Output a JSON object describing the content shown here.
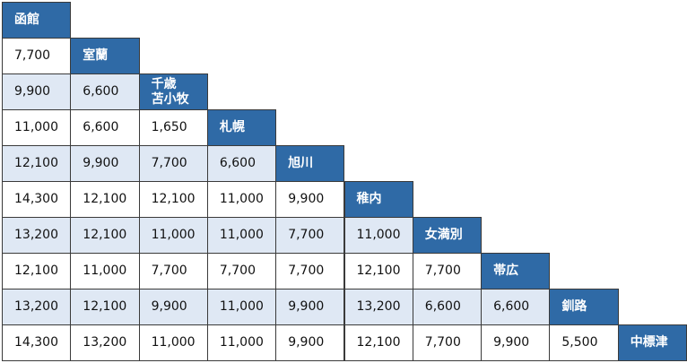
{
  "table": {
    "stations": [
      "函館",
      "室蘭",
      "千歳\n苫小牧",
      "札幌",
      "旭川",
      "稚内",
      "女満別",
      "帯広",
      "釧路",
      "中標津"
    ],
    "rows": [
      [],
      [
        "7,700"
      ],
      [
        "9,900",
        "6,600"
      ],
      [
        "11,000",
        "6,600",
        "1,650"
      ],
      [
        "12,100",
        "9,900",
        "7,700",
        "6,600"
      ],
      [
        "14,300",
        "12,100",
        "12,100",
        "11,000",
        "9,900"
      ],
      [
        "13,200",
        "12,100",
        "11,000",
        "11,000",
        "7,700",
        "11,000"
      ],
      [
        "12,100",
        "11,000",
        "7,700",
        "7,700",
        "7,700",
        "12,100",
        "7,700"
      ],
      [
        "13,200",
        "12,100",
        "9,900",
        "11,000",
        "9,900",
        "13,200",
        "6,600",
        "6,600"
      ],
      [
        "14,300",
        "13,200",
        "11,000",
        "11,000",
        "9,900",
        "12,100",
        "7,700",
        "9,900",
        "5,500"
      ]
    ]
  }
}
